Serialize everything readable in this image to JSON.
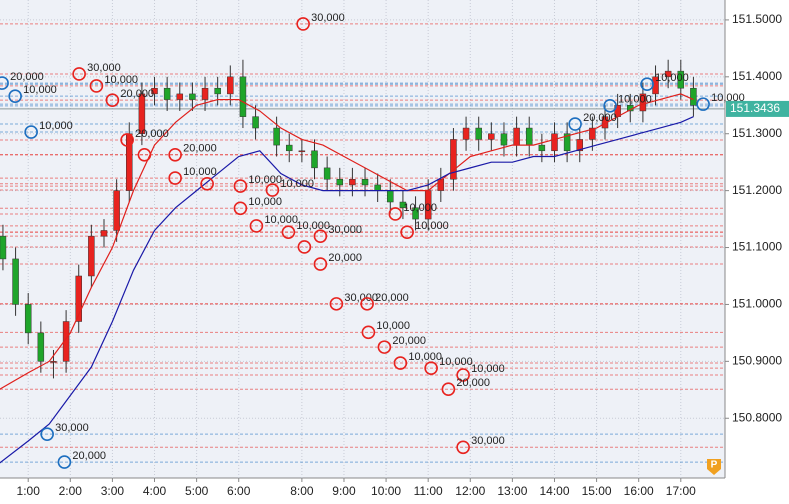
{
  "chart_data": {
    "type": "candlestick",
    "x": [
      0.4,
      0.7,
      1.0,
      1.3,
      1.6,
      1.9,
      2.2,
      2.5,
      2.8,
      3.1,
      3.4,
      3.7,
      4.0,
      4.3,
      4.6,
      4.9,
      5.2,
      5.5,
      5.8,
      6.1,
      6.4,
      6.9,
      7.2,
      7.5,
      7.8,
      8.1,
      8.4,
      8.7,
      9.0,
      9.3,
      9.6,
      9.9,
      10.2,
      10.5,
      10.8,
      11.1,
      11.4,
      11.7,
      12.0,
      12.3,
      12.6,
      12.9,
      13.2,
      13.5,
      13.8,
      14.1,
      14.4,
      14.7,
      15.0,
      15.3,
      15.6,
      15.9,
      16.2,
      16.5,
      16.8
    ],
    "open": [
      151.12,
      151.08,
      151.0,
      150.95,
      150.9,
      150.9,
      150.97,
      151.05,
      151.12,
      151.13,
      151.2,
      151.3,
      151.37,
      151.38,
      151.36,
      151.37,
      151.36,
      151.38,
      151.37,
      151.4,
      151.33,
      151.31,
      151.28,
      151.27,
      151.27,
      151.24,
      151.22,
      151.21,
      151.22,
      151.21,
      151.2,
      151.18,
      151.17,
      151.15,
      151.2,
      151.22,
      151.29,
      151.31,
      151.29,
      151.3,
      151.28,
      151.31,
      151.28,
      151.27,
      151.3,
      151.27,
      151.29,
      151.31,
      151.33,
      151.35,
      151.34,
      151.37,
      151.4,
      151.41,
      151.38
    ],
    "high": [
      151.14,
      151.1,
      151.02,
      150.97,
      150.92,
      150.99,
      151.07,
      151.14,
      151.15,
      151.22,
      151.32,
      151.39,
      151.4,
      151.4,
      151.39,
      151.39,
      151.4,
      151.4,
      151.42,
      151.43,
      151.35,
      151.33,
      151.3,
      151.29,
      151.29,
      151.26,
      151.24,
      151.24,
      151.24,
      151.23,
      151.22,
      151.2,
      151.19,
      151.22,
      151.24,
      151.31,
      151.33,
      151.33,
      151.32,
      151.32,
      151.33,
      151.33,
      151.3,
      151.32,
      151.32,
      151.31,
      151.33,
      151.35,
      151.37,
      151.37,
      151.39,
      151.42,
      151.43,
      151.43,
      151.4
    ],
    "low": [
      151.06,
      150.98,
      150.93,
      150.88,
      150.87,
      150.88,
      150.95,
      151.03,
      151.1,
      151.11,
      151.18,
      151.28,
      151.35,
      151.34,
      151.34,
      151.34,
      151.34,
      151.35,
      151.35,
      151.31,
      151.29,
      151.26,
      151.25,
      151.25,
      151.22,
      151.2,
      151.19,
      151.19,
      151.19,
      151.18,
      151.16,
      151.15,
      151.13,
      151.13,
      151.18,
      151.2,
      151.27,
      151.27,
      151.27,
      151.26,
      151.26,
      151.26,
      151.25,
      151.25,
      151.25,
      151.25,
      151.27,
      151.29,
      151.31,
      151.32,
      151.32,
      151.35,
      151.38,
      151.36,
      151.33
    ],
    "close": [
      151.08,
      151.0,
      150.95,
      150.9,
      150.9,
      150.97,
      151.05,
      151.12,
      151.13,
      151.2,
      151.3,
      151.37,
      151.38,
      151.36,
      151.37,
      151.36,
      151.38,
      151.37,
      151.4,
      151.33,
      151.31,
      151.28,
      151.27,
      151.27,
      151.24,
      151.22,
      151.21,
      151.22,
      151.21,
      151.2,
      151.18,
      151.17,
      151.15,
      151.2,
      151.22,
      151.29,
      151.31,
      151.29,
      151.3,
      151.28,
      151.31,
      151.28,
      151.27,
      151.3,
      151.27,
      151.29,
      151.31,
      151.33,
      151.35,
      151.34,
      151.37,
      151.4,
      151.41,
      151.38,
      151.35
    ],
    "up_color": "#e8231f",
    "down_color": "#1fa52a",
    "series": [
      {
        "color": "#e0201c",
        "x": [
          0.3,
          1.0,
          1.5,
          2.0,
          2.5,
          3.0,
          3.5,
          4.0,
          4.5,
          5.0,
          5.5,
          6.0,
          6.5,
          7.0,
          7.5,
          8.0,
          8.5,
          9.0,
          9.5,
          10.0,
          10.5,
          11.0,
          11.5,
          12.0,
          12.5,
          13.0,
          13.5,
          14.0,
          14.5,
          15.0,
          15.5,
          16.0,
          16.5,
          16.8
        ],
        "values": [
          150.85,
          150.88,
          150.9,
          150.95,
          151.03,
          151.1,
          151.2,
          151.28,
          151.32,
          151.35,
          151.36,
          151.36,
          151.34,
          151.31,
          151.29,
          151.28,
          151.26,
          151.24,
          151.22,
          151.2,
          151.2,
          151.23,
          151.26,
          151.27,
          151.28,
          151.28,
          151.29,
          151.3,
          151.31,
          151.33,
          151.35,
          151.36,
          151.37,
          151.36
        ]
      },
      {
        "color": "#1a1aa8",
        "x": [
          0.3,
          1.0,
          1.5,
          2.0,
          2.5,
          3.0,
          3.5,
          4.0,
          4.5,
          5.0,
          5.5,
          6.0,
          6.5,
          7.0,
          7.5,
          8.0,
          8.5,
          9.0,
          9.5,
          10.0,
          10.5,
          11.0,
          11.5,
          12.0,
          12.5,
          13.0,
          13.5,
          14.0,
          14.5,
          15.0,
          15.5,
          16.0,
          16.5,
          16.8
        ],
        "values": [
          150.72,
          150.76,
          150.79,
          150.84,
          150.89,
          150.97,
          151.06,
          151.13,
          151.17,
          151.2,
          151.23,
          151.26,
          151.27,
          151.23,
          151.21,
          151.2,
          151.2,
          151.2,
          151.2,
          151.2,
          151.21,
          151.23,
          151.24,
          151.25,
          151.25,
          151.26,
          151.26,
          151.27,
          151.28,
          151.29,
          151.3,
          151.31,
          151.32,
          151.33
        ]
      }
    ],
    "orders": [
      {
        "color": "#e8231f",
        "x": 7.53,
        "price": 151.493,
        "label": "30,000"
      },
      {
        "color": "#e8231f",
        "x": 2.21,
        "price": 151.405,
        "label": "30,000"
      },
      {
        "color": "#e8231f",
        "x": 2.62,
        "price": 151.384,
        "label": "10,000"
      },
      {
        "color": "#e8231f",
        "x": 3.0,
        "price": 151.359,
        "label": "20,000"
      },
      {
        "color": "#1d6fc0",
        "x": 0.38,
        "price": 151.389,
        "label": "20,000"
      },
      {
        "color": "#1d6fc0",
        "x": 0.69,
        "price": 151.366,
        "label": "10,000"
      },
      {
        "color": "#1d6fc0",
        "x": 1.07,
        "price": 151.303,
        "label": "10,000"
      },
      {
        "color": "#e8231f",
        "x": 3.35,
        "price": 151.289,
        "label": "20,000"
      },
      {
        "color": "#e8231f",
        "x": 3.76,
        "price": 151.263,
        "label": null
      },
      {
        "color": "#e8231f",
        "x": 4.49,
        "price": 151.263,
        "label": "20,000"
      },
      {
        "color": "#e8231f",
        "x": 4.49,
        "price": 151.222,
        "label": "10,000"
      },
      {
        "color": "#e8231f",
        "x": 5.25,
        "price": 151.212,
        "label": null
      },
      {
        "color": "#e8231f",
        "x": 6.04,
        "price": 151.208,
        "label": "10,000"
      },
      {
        "color": "#e8231f",
        "x": 6.8,
        "price": 151.201,
        "label": "10,000"
      },
      {
        "color": "#e8231f",
        "x": 6.04,
        "price": 151.169,
        "label": "10,000"
      },
      {
        "color": "#e8231f",
        "x": 6.42,
        "price": 151.138,
        "label": "10,000"
      },
      {
        "color": "#e8231f",
        "x": 7.18,
        "price": 151.127,
        "label": "10,000"
      },
      {
        "color": "#e8231f",
        "x": 7.94,
        "price": 151.12,
        "label": "30,000"
      },
      {
        "color": "#e8231f",
        "x": 7.56,
        "price": 151.101,
        "label": null
      },
      {
        "color": "#e8231f",
        "x": 7.94,
        "price": 151.071,
        "label": "20,000"
      },
      {
        "color": "#e8231f",
        "x": 8.32,
        "price": 151.001,
        "label": "30,000"
      },
      {
        "color": "#e8231f",
        "x": 9.05,
        "price": 151.001,
        "label": "20,000"
      },
      {
        "color": "#e8231f",
        "x": 9.08,
        "price": 150.951,
        "label": "10,000"
      },
      {
        "color": "#e8231f",
        "x": 9.46,
        "price": 150.925,
        "label": "20,000"
      },
      {
        "color": "#e8231f",
        "x": 9.84,
        "price": 150.897,
        "label": "10,000"
      },
      {
        "color": "#e8231f",
        "x": 10.57,
        "price": 150.888,
        "label": "10,000"
      },
      {
        "color": "#e8231f",
        "x": 11.33,
        "price": 150.876,
        "label": "10,000"
      },
      {
        "color": "#e8231f",
        "x": 10.98,
        "price": 150.851,
        "label": "20,000"
      },
      {
        "color": "#e8231f",
        "x": 9.72,
        "price": 151.159,
        "label": "10,000"
      },
      {
        "color": "#e8231f",
        "x": 10.0,
        "price": 151.127,
        "label": "10,000"
      },
      {
        "color": "#e8231f",
        "x": 11.33,
        "price": 150.749,
        "label": "30,000"
      },
      {
        "color": "#1d6fc0",
        "x": 1.45,
        "price": 150.772,
        "label": "30,000"
      },
      {
        "color": "#1d6fc0",
        "x": 1.86,
        "price": 150.723,
        "label": "20,000"
      },
      {
        "color": "#1d6fc0",
        "x": 13.99,
        "price": 151.317,
        "label": "20,000"
      },
      {
        "color": "#1d6fc0",
        "x": 14.82,
        "price": 151.349,
        "label": "10,000"
      },
      {
        "color": "#1d6fc0",
        "x": 15.7,
        "price": 151.387,
        "label": "10,000"
      },
      {
        "color": "#1d6fc0",
        "x": 17.03,
        "price": 151.352,
        "label": "10,000"
      }
    ],
    "current_price": 151.3436,
    "xlim": [
      0.33,
      17.55
    ],
    "xticks": [
      {
        "value": 1,
        "label": "1:00"
      },
      {
        "value": 2,
        "label": "2:00"
      },
      {
        "value": 3,
        "label": "3:00"
      },
      {
        "value": 4,
        "label": "4:00"
      },
      {
        "value": 5,
        "label": "5:00"
      },
      {
        "value": 6,
        "label": "6:00"
      },
      {
        "value": 7.5,
        "label": "8:00"
      },
      {
        "value": 8.5,
        "label": "9:00"
      },
      {
        "value": 9.5,
        "label": "10:00"
      },
      {
        "value": 10.5,
        "label": "11:00"
      },
      {
        "value": 11.5,
        "label": "12:00"
      },
      {
        "value": 12.5,
        "label": "13:00"
      },
      {
        "value": 13.5,
        "label": "14:00"
      },
      {
        "value": 14.5,
        "label": "15:00"
      },
      {
        "value": 15.5,
        "label": "16:00"
      },
      {
        "value": 16.5,
        "label": "17:00"
      }
    ],
    "ylim": [
      150.695,
      151.535
    ],
    "yticks": [
      {
        "value": 150.8,
        "label": "150.8000"
      },
      {
        "value": 150.9,
        "label": "150.9000"
      },
      {
        "value": 151.0,
        "label": "151.0000"
      },
      {
        "value": 151.1,
        "label": "151.1000"
      },
      {
        "value": 151.2,
        "label": "151.2000"
      },
      {
        "value": 151.3,
        "label": "151.3000"
      },
      {
        "value": 151.4,
        "label": "151.4000"
      },
      {
        "value": 151.5,
        "label": "151.5000"
      }
    ],
    "grid": true
  }
}
